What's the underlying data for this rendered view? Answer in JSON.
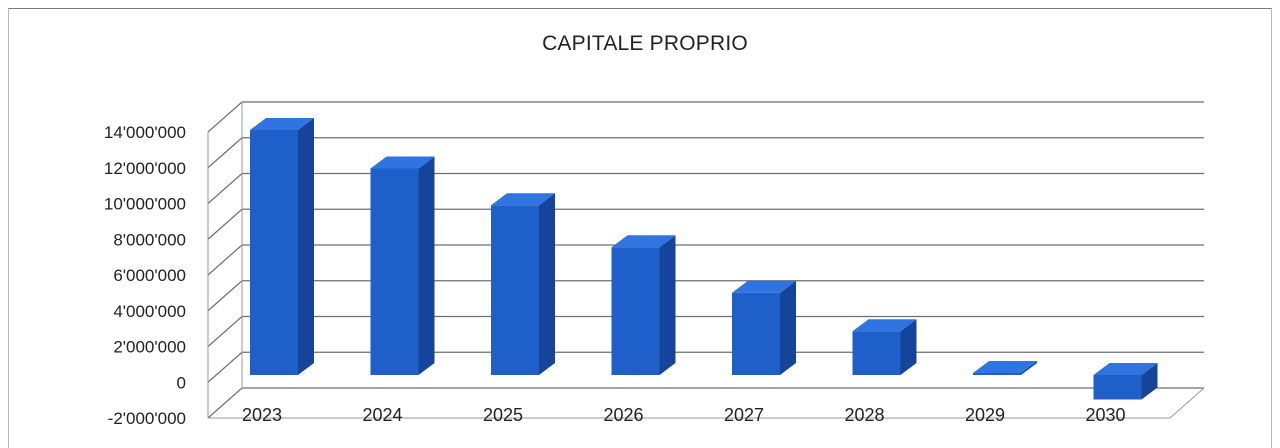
{
  "chart_data": {
    "type": "bar",
    "title": "CAPITALE PROPRIO",
    "xlabel": "",
    "ylabel": "",
    "categories": [
      "2023",
      "2024",
      "2025",
      "2026",
      "2027",
      "2028",
      "2029",
      "2030"
    ],
    "values": [
      14000000,
      11800000,
      9700000,
      7300000,
      4700000,
      2500000,
      200000,
      -1400000
    ],
    "ylim": [
      -2000000,
      14000000
    ],
    "yticks": [
      "-2'000'000",
      "0",
      "2'000'000",
      "4'000'000",
      "6'000'000",
      "8'000'000",
      "10'000'000",
      "12'000'000",
      "14'000'000"
    ],
    "grid": true,
    "legend": "none",
    "style": "3d-column",
    "colors": {
      "bar_front": "#1f5fc9",
      "bar_side": "#16449a",
      "bar_top": "#2f74e0",
      "grid": "#6f6f6f"
    }
  }
}
